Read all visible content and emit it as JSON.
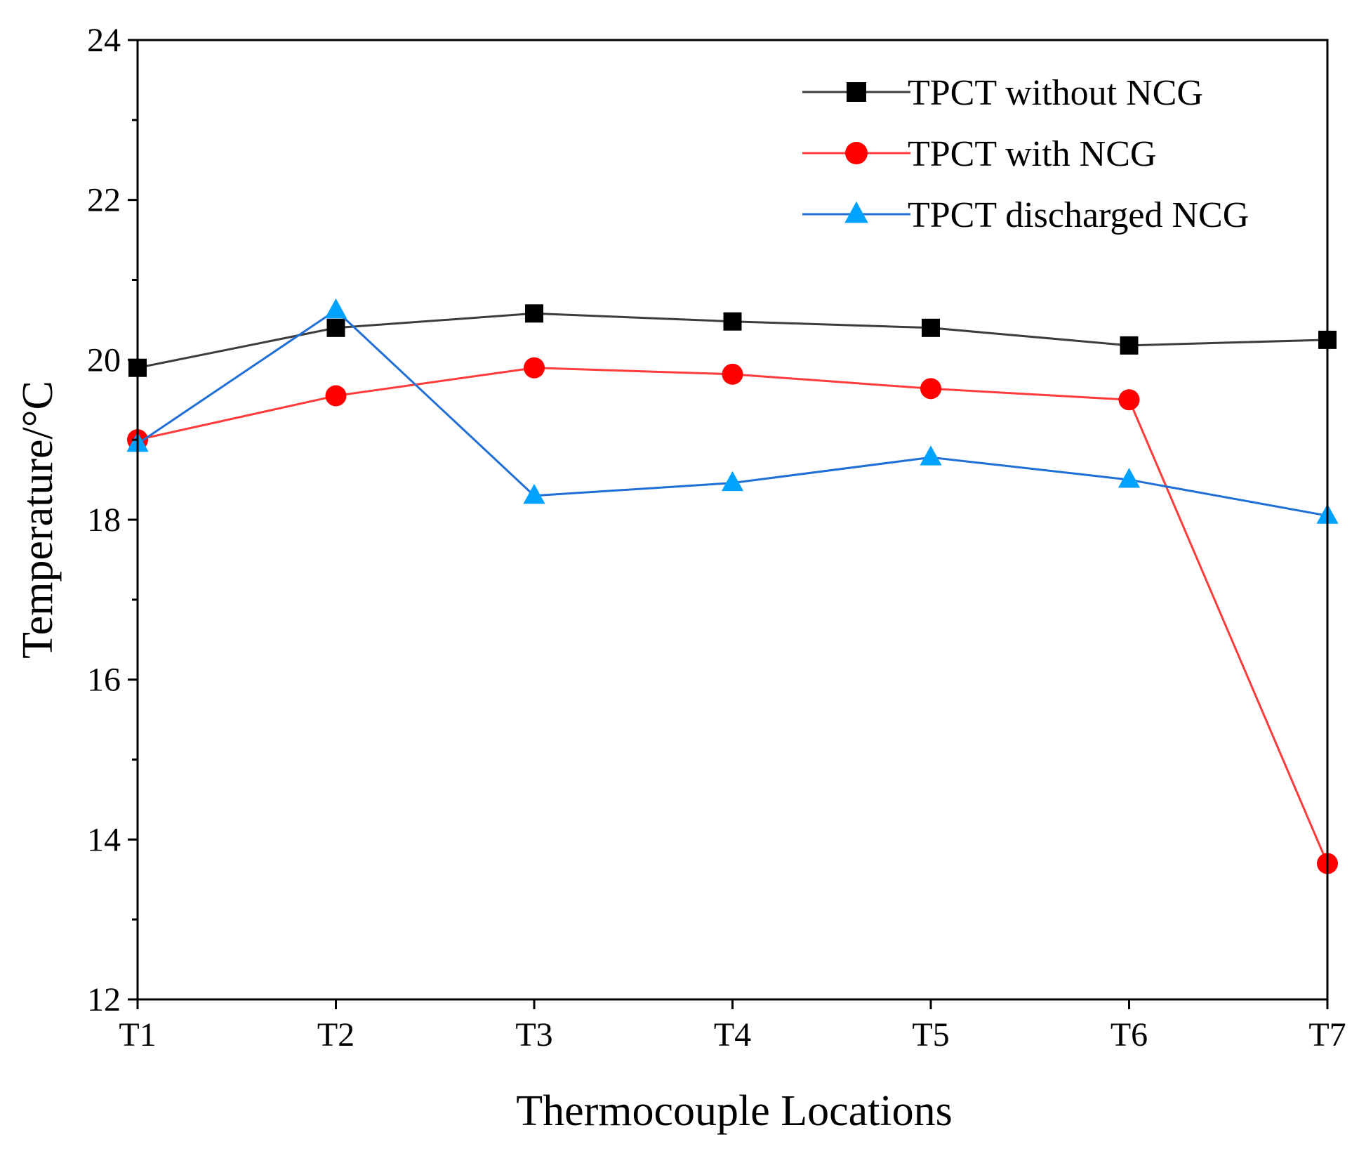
{
  "chart_data": {
    "type": "line",
    "title": "",
    "xlabel": "Thermocouple Locations",
    "ylabel": "Temperature/°C",
    "categories": [
      "T1",
      "T2",
      "T3",
      "T4",
      "T5",
      "T6",
      "T7"
    ],
    "ylim": [
      12,
      24
    ],
    "yticks": [
      12,
      14,
      16,
      18,
      20,
      22,
      24
    ],
    "grid": false,
    "legend_position": "top-right",
    "series": [
      {
        "name": "TPCT without NCG",
        "color": "#3c3c3c",
        "marker_color": "#000000",
        "marker": "square",
        "values": [
          19.9,
          20.4,
          20.58,
          20.48,
          20.4,
          20.18,
          20.25
        ]
      },
      {
        "name": "TPCT with NCG",
        "color": "#ff3b3b",
        "marker_color": "#ff0000",
        "marker": "circle",
        "values": [
          19.0,
          19.55,
          19.9,
          19.82,
          19.64,
          19.5,
          13.7
        ]
      },
      {
        "name": "TPCT discharged NCG",
        "color": "#1f6fd6",
        "marker_color": "#00a2ff",
        "marker": "triangle",
        "values": [
          18.95,
          20.62,
          18.3,
          18.46,
          18.78,
          18.5,
          18.05
        ]
      }
    ]
  }
}
